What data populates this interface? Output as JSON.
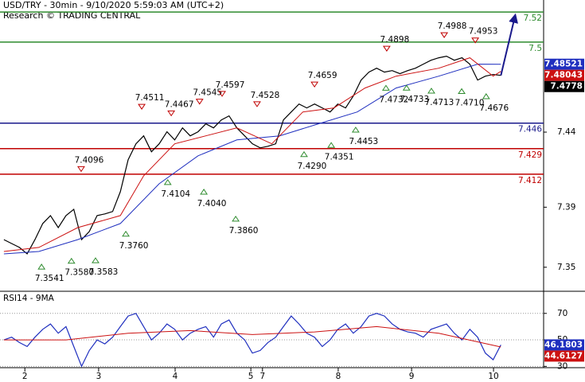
{
  "header": {
    "title": "USD/TRY - 30min - 9/10/2020 5:59:03 AM (UTC+2)",
    "subtitle": "Research © TRADING CENTRAL"
  },
  "chart_data": [
    {
      "type": "line",
      "xlim": [
        0,
        140
      ],
      "ylim": [
        7.334,
        7.528
      ],
      "yticks": [
        7.35,
        7.39,
        7.44
      ],
      "grid": false,
      "series": [
        {
          "color": "#000000",
          "value_box": true,
          "x": [
            1,
            3,
            5,
            7,
            9,
            11,
            13,
            15,
            17,
            19,
            21,
            23,
            25,
            27,
            29,
            31,
            33,
            35,
            37,
            39,
            41,
            43,
            45,
            47,
            49,
            51,
            53,
            55,
            57,
            59,
            61,
            63,
            65,
            67,
            69,
            71,
            73,
            75,
            77,
            79,
            81,
            83,
            85,
            87,
            89,
            91,
            93,
            95,
            97,
            99,
            101,
            103,
            105,
            107,
            109,
            111,
            113,
            115,
            117,
            119,
            121,
            123,
            125,
            127,
            129
          ],
          "values": [
            7.3684,
            7.3658,
            7.3632,
            7.3589,
            7.3684,
            7.3791,
            7.3844,
            7.3764,
            7.3844,
            7.3886,
            7.3684,
            7.3738,
            7.3844,
            7.3855,
            7.3871,
            7.4003,
            7.4216,
            7.4322,
            7.4375,
            7.4269,
            7.4322,
            7.4402,
            7.4348,
            7.4428,
            7.4375,
            7.4402,
            7.4455,
            7.4428,
            7.4481,
            7.4508,
            7.4428,
            7.4375,
            7.4322,
            7.4295,
            7.4306,
            7.4322,
            7.4481,
            7.4534,
            7.4587,
            7.4561,
            7.4587,
            7.4561,
            7.4534,
            7.4587,
            7.4561,
            7.4641,
            7.4747,
            7.48,
            7.4826,
            7.48,
            7.481,
            7.4789,
            7.481,
            7.4826,
            7.4853,
            7.4879,
            7.4895,
            7.4906,
            7.4879,
            7.4895,
            7.4853,
            7.4747,
            7.4773,
            7.4784,
            7.4778
          ]
        },
        {
          "color": "#1f2fbf",
          "value_box": true,
          "x": [
            1,
            10,
            20,
            31,
            41,
            51,
            61,
            72,
            82,
            92,
            102,
            113,
            123,
            129
          ],
          "values": [
            7.3589,
            7.3605,
            7.3684,
            7.3791,
            7.4056,
            7.4242,
            7.4348,
            7.4375,
            7.4455,
            7.4534,
            7.4694,
            7.4773,
            7.4853,
            7.48521
          ]
        },
        {
          "color": "#cc1111",
          "value_box": true,
          "x": [
            1,
            10,
            20,
            31,
            37,
            45,
            53,
            61,
            70,
            78,
            86,
            94,
            102,
            113,
            121,
            127,
            129
          ],
          "values": [
            7.3605,
            7.3632,
            7.3764,
            7.3844,
            7.4109,
            7.4322,
            7.4375,
            7.4428,
            7.4322,
            7.4534,
            7.4561,
            7.4694,
            7.4773,
            7.4826,
            7.4895,
            7.4773,
            7.48043
          ]
        }
      ],
      "levels": [
        {
          "value": 7.52,
          "color": "#2e8b2e"
        },
        {
          "value": 7.5,
          "color": "#2e8b2e"
        },
        {
          "value": 7.446,
          "color": "#1a1a8c"
        },
        {
          "value": 7.429,
          "color": "#c00000"
        },
        {
          "value": 7.412,
          "color": "#c00000"
        }
      ],
      "highs": [
        {
          "x": 20.9,
          "value": 7.4096,
          "label": "7.4096"
        },
        {
          "x": 36.5,
          "value": 7.4511,
          "label": "7.4511"
        },
        {
          "x": 44.1,
          "value": 7.4467,
          "label": "7.4467"
        },
        {
          "x": 51.4,
          "value": 7.4545,
          "label": "7.4545"
        },
        {
          "x": 57.2,
          "value": 7.4597,
          "label": "7.4597"
        },
        {
          "x": 66.2,
          "value": 7.4528,
          "label": "7.4528"
        },
        {
          "x": 81.0,
          "value": 7.4659,
          "label": "7.4659"
        },
        {
          "x": 99.6,
          "value": 7.4898,
          "label": "7.4898"
        },
        {
          "x": 114.4,
          "value": 7.4988,
          "label": "7.4988"
        },
        {
          "x": 122.4,
          "value": 7.4953,
          "label": "7.4953"
        }
      ],
      "lows": [
        {
          "x": 10.7,
          "value": 7.3541,
          "label": "7.3541"
        },
        {
          "x": 18.4,
          "value": 7.358,
          "label": "7.3580"
        },
        {
          "x": 24.6,
          "value": 7.3583,
          "label": "7.3583"
        },
        {
          "x": 32.4,
          "value": 7.376,
          "label": "7.3760"
        },
        {
          "x": 43.2,
          "value": 7.4104,
          "label": "7.4104"
        },
        {
          "x": 52.5,
          "value": 7.404,
          "label": "7.4040"
        },
        {
          "x": 60.7,
          "value": 7.386,
          "label": "7.3860"
        },
        {
          "x": 78.3,
          "value": 7.429,
          "label": "7.4290"
        },
        {
          "x": 85.3,
          "value": 7.4351,
          "label": "7.4351"
        },
        {
          "x": 91.6,
          "value": 7.4453,
          "label": "7.4453"
        },
        {
          "x": 99.4,
          "value": 7.4732,
          "label": "7.4732"
        },
        {
          "x": 104.7,
          "value": 7.4733,
          "label": "7.4733"
        },
        {
          "x": 111.1,
          "value": 7.4713,
          "label": "7.4713"
        },
        {
          "x": 118.9,
          "value": 7.471,
          "label": "7.4710"
        },
        {
          "x": 125.2,
          "value": 7.4676,
          "label": "7.4676"
        }
      ]
    },
    {
      "type": "line",
      "title": "RSI14 - 9MA",
      "xlim": [
        0,
        140
      ],
      "ylim": [
        29,
        85.5
      ],
      "yticks": [
        30,
        50,
        70
      ],
      "grid": true,
      "xticks": [
        {
          "value": 6.4,
          "label": "2"
        },
        {
          "value": 25.4,
          "label": "3"
        },
        {
          "value": 45.1,
          "label": "4"
        },
        {
          "value": 64.6,
          "label": "5"
        },
        {
          "value": 67.6,
          "label": "7"
        },
        {
          "value": 87.1,
          "label": "8"
        },
        {
          "value": 106,
          "label": "9"
        },
        {
          "value": 127.1,
          "label": "10"
        }
      ],
      "series": [
        {
          "color": "#1f2fbf",
          "value_box": true,
          "x": [
            1,
            3,
            5,
            7,
            9,
            11,
            13,
            15,
            17,
            19,
            21,
            23,
            25,
            27,
            29,
            31,
            33,
            35,
            37,
            39,
            41,
            43,
            45,
            47,
            49,
            51,
            53,
            55,
            57,
            59,
            61,
            63,
            65,
            67,
            69,
            71,
            73,
            75,
            77,
            79,
            81,
            83,
            85,
            87,
            89,
            91,
            93,
            95,
            97,
            99,
            101,
            103,
            105,
            107,
            109,
            111,
            113,
            115,
            117,
            119,
            121,
            123,
            125,
            127,
            129
          ],
          "values": [
            50,
            52,
            48,
            45,
            52,
            58,
            62,
            55,
            60,
            45,
            30,
            42,
            50,
            47,
            52,
            60,
            68,
            70,
            60,
            50,
            55,
            62,
            58,
            50,
            55,
            58,
            60,
            52,
            62,
            65,
            55,
            50,
            40,
            42,
            48,
            52,
            60,
            68,
            62,
            55,
            52,
            45,
            50,
            58,
            62,
            55,
            60,
            68,
            70,
            68,
            62,
            58,
            56,
            55,
            52,
            58,
            60,
            62,
            55,
            50,
            58,
            52,
            40,
            35,
            46.1803
          ]
        },
        {
          "color": "#cc1111",
          "value_box": true,
          "x": [
            1,
            17,
            33,
            49,
            65,
            81,
            97,
            113,
            129
          ],
          "values": [
            50,
            50,
            55,
            57,
            54,
            56,
            60,
            55,
            44.6127
          ]
        }
      ]
    }
  ]
}
